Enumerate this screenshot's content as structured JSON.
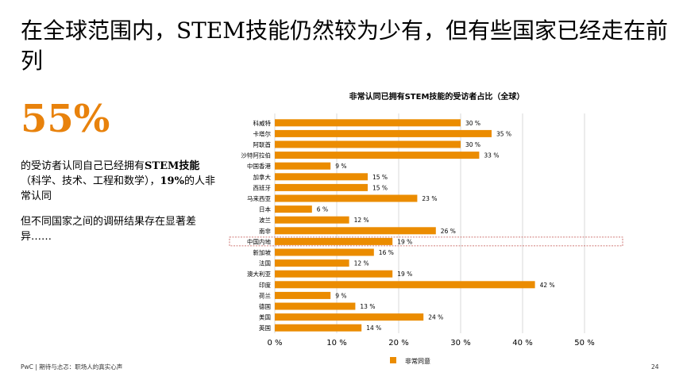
{
  "slide": {
    "title": "在全球范围内，STEM技能仍然较为少有，但有些国家已经走在前列",
    "big_number": "55%",
    "description_1_prefix": "的受访者认同自己已经拥有",
    "description_1_bold": "STEM技能",
    "description_1_middle": "（科学、技术、工程和数学），",
    "description_1_bold2": "19%",
    "description_1_suffix": "的人非常认同",
    "description_2": "但不同国家之间的调研结果存在显著差异……",
    "footer": "PwC | 期待与忐忑：职场人的真实心声",
    "page_number": "24"
  },
  "colors": {
    "accent": "#e8820c",
    "bar": "#eb8c00",
    "grid": "#d9d9d9",
    "highlight_border": "#c0504d"
  },
  "chart_data": {
    "type": "bar",
    "orientation": "horizontal",
    "title": "非常认同已拥有STEM技能的受访者占比（全球）",
    "categories": [
      "科威特",
      "卡塔尔",
      "阿联酋",
      "沙特阿拉伯",
      "中国香港",
      "加拿大",
      "西班牙",
      "马来西亚",
      "日本",
      "波兰",
      "南非",
      "中国内地",
      "新加坡",
      "法国",
      "澳大利亚",
      "印度",
      "荷兰",
      "德国",
      "美国",
      "英国"
    ],
    "series": [
      {
        "name": "非常同意",
        "values": [
          30,
          35,
          30,
          33,
          9,
          15,
          15,
          23,
          6,
          12,
          26,
          19,
          16,
          12,
          19,
          42,
          9,
          13,
          24,
          14
        ]
      }
    ],
    "value_labels": [
      "30 %",
      "35 %",
      "30 %",
      "33 %",
      "9 %",
      "15 %",
      "15 %",
      "23 %",
      "6 %",
      "12 %",
      "26 %",
      "19 %",
      "16 %",
      "12 %",
      "19 %",
      "42 %",
      "9 %",
      "13 %",
      "24 %",
      "14 %"
    ],
    "highlighted_category": "中国内地",
    "xlim": [
      0,
      50
    ],
    "x_ticks": [
      "0 %",
      "10 %",
      "20 %",
      "30 %",
      "40 %",
      "50 %"
    ],
    "x_tick_values": [
      0,
      10,
      20,
      30,
      40,
      50
    ],
    "grid": true,
    "legend_position": "bottom"
  }
}
